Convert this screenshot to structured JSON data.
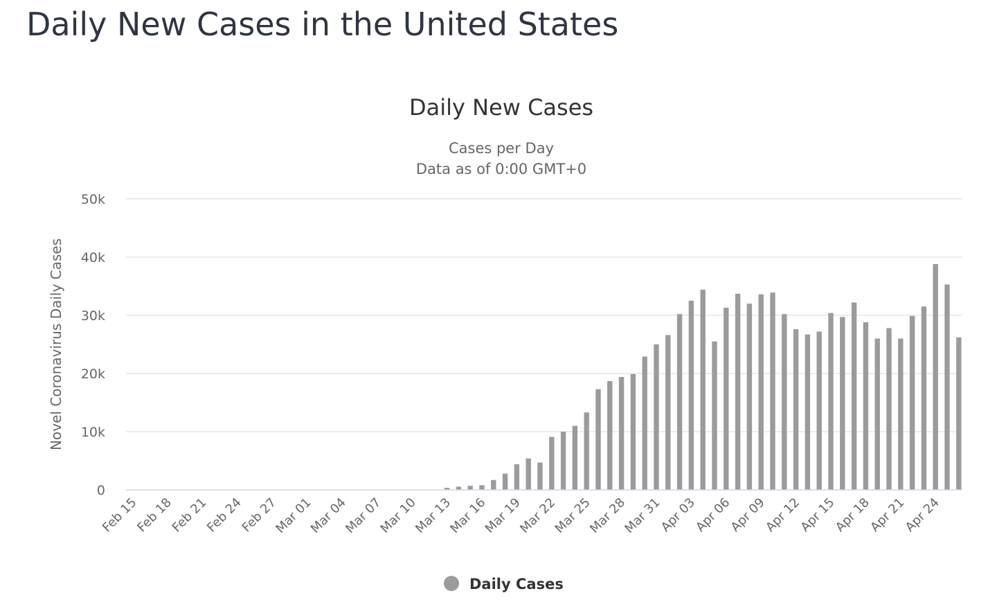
{
  "page": {
    "title": "Daily New Cases in the United States"
  },
  "colors": {
    "bar": "#9b9b9b",
    "grid": "#e6e6e6",
    "axis_line": "#ccd6eb",
    "text": "#333333",
    "tick_text": "#666666"
  },
  "chart_data": {
    "type": "bar",
    "title": "Daily New Cases",
    "subtitle": [
      "Cases per Day",
      "Data as of 0:00 GMT+0"
    ],
    "xlabel": "",
    "ylabel": "Novel Coronavirus Daily Cases",
    "ylim": [
      0,
      50000
    ],
    "yticks": [
      {
        "value": 0,
        "label": "0"
      },
      {
        "value": 10000,
        "label": "10k"
      },
      {
        "value": 20000,
        "label": "20k"
      },
      {
        "value": 30000,
        "label": "30k"
      },
      {
        "value": 40000,
        "label": "40k"
      },
      {
        "value": 50000,
        "label": "50k"
      }
    ],
    "grid": true,
    "legend": {
      "position": "bottom-center"
    },
    "categories": [
      "Feb 15",
      "Feb 16",
      "Feb 17",
      "Feb 18",
      "Feb 19",
      "Feb 20",
      "Feb 21",
      "Feb 22",
      "Feb 23",
      "Feb 24",
      "Feb 25",
      "Feb 26",
      "Feb 27",
      "Feb 28",
      "Feb 29",
      "Mar 01",
      "Mar 02",
      "Mar 03",
      "Mar 04",
      "Mar 05",
      "Mar 06",
      "Mar 07",
      "Mar 08",
      "Mar 09",
      "Mar 10",
      "Mar 11",
      "Mar 12",
      "Mar 13",
      "Mar 14",
      "Mar 15",
      "Mar 16",
      "Mar 17",
      "Mar 18",
      "Mar 19",
      "Mar 20",
      "Mar 21",
      "Mar 22",
      "Mar 23",
      "Mar 24",
      "Mar 25",
      "Mar 26",
      "Mar 27",
      "Mar 28",
      "Mar 29",
      "Mar 30",
      "Mar 31",
      "Apr 01",
      "Apr 02",
      "Apr 03",
      "Apr 04",
      "Apr 05",
      "Apr 06",
      "Apr 07",
      "Apr 08",
      "Apr 09",
      "Apr 10",
      "Apr 11",
      "Apr 12",
      "Apr 13",
      "Apr 14",
      "Apr 15",
      "Apr 16",
      "Apr 17",
      "Apr 18",
      "Apr 19",
      "Apr 20",
      "Apr 21",
      "Apr 22",
      "Apr 23",
      "Apr 24",
      "Apr 25",
      "Apr 26"
    ],
    "tick_labels": [
      "Feb 15",
      "Feb 18",
      "Feb 21",
      "Feb 24",
      "Feb 27",
      "Mar 01",
      "Mar 04",
      "Mar 07",
      "Mar 10",
      "Mar 13",
      "Mar 16",
      "Mar 19",
      "Mar 22",
      "Mar 25",
      "Mar 28",
      "Mar 31",
      "Apr 03",
      "Apr 06",
      "Apr 09",
      "Apr 12",
      "Apr 15",
      "Apr 18",
      "Apr 21",
      "Apr 24"
    ],
    "series": [
      {
        "name": "Daily Cases",
        "color": "#9b9b9b",
        "values": [
          0,
          0,
          0,
          0,
          0,
          0,
          0,
          0,
          0,
          0,
          0,
          0,
          0,
          0,
          0,
          0,
          0,
          0,
          0,
          0,
          0,
          0,
          0,
          0,
          0,
          0,
          0,
          350,
          550,
          700,
          800,
          1700,
          2800,
          4400,
          5400,
          4700,
          9100,
          10000,
          11000,
          13300,
          17300,
          18700,
          19400,
          19900,
          22900,
          25000,
          26600,
          30200,
          32500,
          34400,
          25500,
          31300,
          33700,
          32000,
          33600,
          33900,
          30200,
          27600,
          26700,
          27200,
          30400,
          29700,
          32200,
          28800,
          26000,
          27800,
          26000,
          29900,
          31500,
          38800,
          35300,
          26200
        ]
      }
    ]
  }
}
